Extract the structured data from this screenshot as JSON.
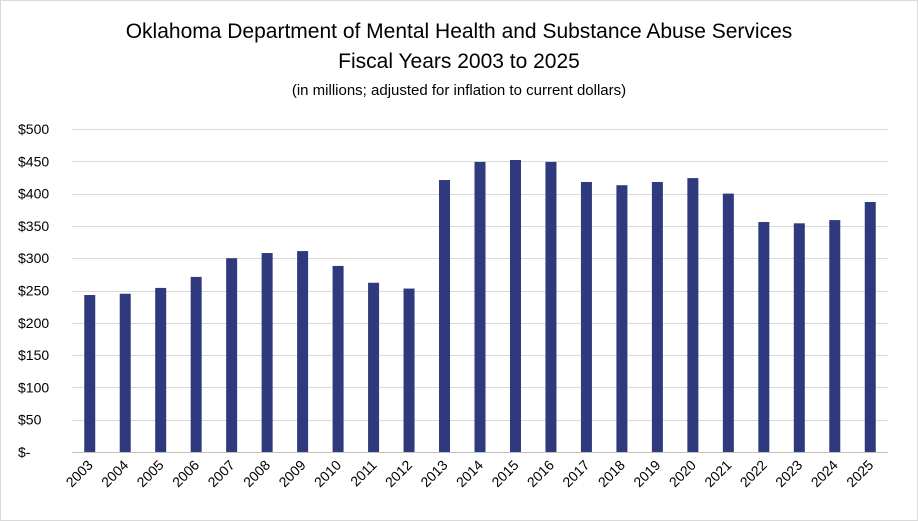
{
  "title": "Oklahoma Department of Mental Health and Substance Abuse Services",
  "subtitle": "Fiscal Years 2003 to 2025",
  "note": "(in millions; adjusted for inflation to current dollars)",
  "colors": {
    "bar": "#2E3A7D",
    "grid": "#d9d9d9",
    "axis": "#bfbfbf"
  },
  "chart_data": {
    "type": "bar",
    "title": "Oklahoma Department of Mental Health and Substance Abuse Services",
    "subtitle": "Fiscal Years 2003 to 2025",
    "note": "(in millions; adjusted for inflation to current dollars)",
    "xlabel": "",
    "ylabel": "",
    "categories": [
      "2003",
      "2004",
      "2005",
      "2006",
      "2007",
      "2008",
      "2009",
      "2010",
      "2011",
      "2012",
      "2013",
      "2014",
      "2015",
      "2016",
      "2017",
      "2018",
      "2019",
      "2020",
      "2021",
      "2022",
      "2023",
      "2024",
      "2025"
    ],
    "values": [
      243,
      245,
      254,
      271,
      300,
      308,
      311,
      288,
      262,
      253,
      421,
      449,
      452,
      449,
      418,
      413,
      418,
      424,
      400,
      356,
      354,
      359,
      387
    ],
    "ylim": [
      0,
      500
    ],
    "yticks": [
      0,
      50,
      100,
      150,
      200,
      250,
      300,
      350,
      400,
      450,
      500
    ],
    "ytick_labels": [
      "$-",
      "$50",
      "$100",
      "$150",
      "$200",
      "$250",
      "$300",
      "$350",
      "$400",
      "$450",
      "$500"
    ],
    "grid": true,
    "legend": "none"
  }
}
